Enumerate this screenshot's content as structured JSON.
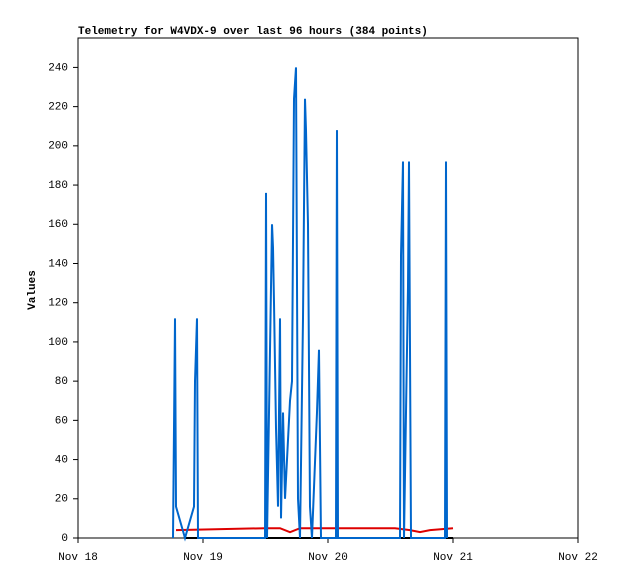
{
  "chart_data": {
    "type": "line",
    "title": "Telemetry for W4VDX-9 over last 96 hours (384 points)",
    "y_label": "Values",
    "xlim": [
      0,
      4
    ],
    "xticks": [
      {
        "value": 0,
        "label": "Nov 18"
      },
      {
        "value": 1,
        "label": "Nov 19"
      },
      {
        "value": 2,
        "label": "Nov 20"
      },
      {
        "value": 3,
        "label": "Nov 21"
      },
      {
        "value": 4,
        "label": "Nov 22"
      }
    ],
    "ylim": [
      0,
      255
    ],
    "yticks": [
      0,
      20,
      40,
      60,
      80,
      100,
      120,
      140,
      160,
      180,
      200,
      220,
      240
    ],
    "grid": false,
    "series": [
      {
        "color": "#000000",
        "x": [
          0.856,
          3.0
        ],
        "values": [
          0,
          0
        ]
      },
      {
        "color": "#dd0000",
        "x": [
          0.784,
          1.496,
          1.616,
          1.696,
          1.776,
          2.536,
          2.656,
          2.736,
          2.816,
          3.0
        ],
        "values": [
          4,
          5,
          5,
          3,
          5,
          5,
          4,
          3,
          4,
          5
        ]
      },
      {
        "color": "#0066cc",
        "x": [
          0.76,
          0.768,
          0.776,
          0.784,
          0.856,
          0.928,
          0.936,
          0.952,
          0.96,
          1.496,
          1.504,
          1.512,
          1.552,
          1.56,
          1.568,
          1.584,
          1.6,
          1.616,
          1.624,
          1.64,
          1.656,
          1.672,
          1.696,
          1.712,
          1.728,
          1.744,
          1.76,
          1.776,
          1.8,
          1.816,
          1.824,
          1.832,
          1.84,
          1.856,
          1.872,
          1.912,
          1.928,
          1.944,
          2.064,
          2.072,
          2.08,
          2.576,
          2.584,
          2.6,
          2.608,
          2.64,
          2.648,
          2.664,
          2.936,
          2.944,
          2.952
        ],
        "values": [
          0,
          56,
          112,
          16,
          0,
          16,
          80,
          112,
          0,
          0,
          176,
          0,
          160,
          148,
          120,
          56,
          16,
          112,
          10,
          64,
          20,
          40,
          70,
          80,
          224,
          240,
          20,
          0,
          112,
          224,
          208,
          184,
          160,
          16,
          0,
          64,
          96,
          0,
          0,
          208,
          0,
          0,
          144,
          192,
          0,
          128,
          192,
          0,
          0,
          192,
          0
        ]
      }
    ]
  }
}
